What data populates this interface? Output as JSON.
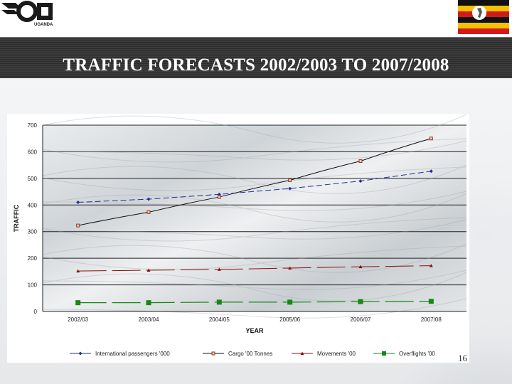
{
  "header": {
    "logo_text": "UGANDA",
    "title": "TRAFFIC FORECASTS 2002/2003 TO 2007/2008"
  },
  "footer": {
    "page_number": "16"
  },
  "chart_data": {
    "type": "line",
    "title": "",
    "xlabel": "YEAR",
    "ylabel": "TRAFFIC",
    "categories": [
      "2002/03",
      "2003/04",
      "2004/05",
      "2005/06",
      "2006/07",
      "2007/08"
    ],
    "ylim": [
      0,
      700
    ],
    "yticks": [
      "0",
      "100",
      "200",
      "300",
      "400",
      "500",
      "600",
      "700"
    ],
    "grid": true,
    "legend_position": "bottom",
    "series": [
      {
        "name": "International passengers '000",
        "values": [
          410,
          422,
          440,
          462,
          490,
          527
        ],
        "color": "#1f2f9a",
        "marker": "diamond",
        "dash": "dash"
      },
      {
        "name": "Cargo '00 Tonnes",
        "values": [
          323,
          373,
          430,
          493,
          565,
          650
        ],
        "color": "#9a3a1a",
        "marker": "square-open",
        "dash": "solid",
        "line_color": "#111111"
      },
      {
        "name": "Movements '00",
        "values": [
          152,
          155,
          158,
          163,
          168,
          172
        ],
        "color": "#8a1010",
        "marker": "triangle",
        "dash": "dash"
      },
      {
        "name": "Overflights '00",
        "values": [
          33,
          33,
          35,
          35,
          37,
          38
        ],
        "color": "#138a13",
        "marker": "square",
        "dash": "dash"
      }
    ]
  }
}
